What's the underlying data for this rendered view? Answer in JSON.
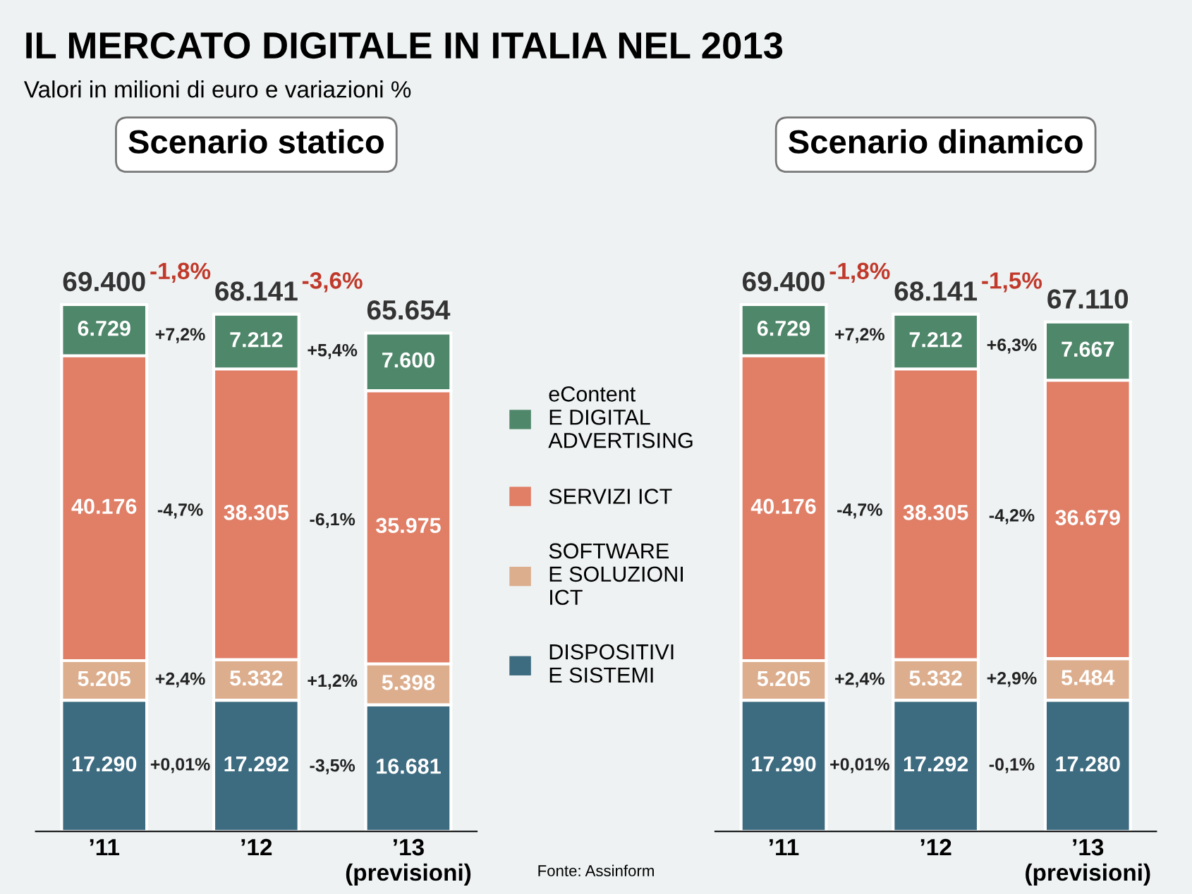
{
  "chart_data": [
    {
      "type": "bar",
      "stacked": true,
      "title": "Scenario statico",
      "categories": [
        "’11",
        "’12",
        "’13\n(previsioni)"
      ],
      "tick_labels": "x",
      "grid": false,
      "legend": "right",
      "series": [
        {
          "name": "DISPOSITIVI\nE SISTEMI",
          "color": "#3d6b80",
          "values": [
            17290,
            17292,
            16681
          ],
          "value_labels": [
            "17.290",
            "17.292",
            "16.681"
          ]
        },
        {
          "name": "SOFTWARE\nE SOLUZIONI\nICT",
          "color": "#dcae8e",
          "values": [
            5205,
            5332,
            5398
          ],
          "value_labels": [
            "5.205",
            "5.332",
            "5.398"
          ]
        },
        {
          "name": "SERVIZI ICT",
          "color": "#e07e66",
          "values": [
            40176,
            38305,
            35975
          ],
          "value_labels": [
            "40.176",
            "38.305",
            "35.975"
          ]
        },
        {
          "name": "eContent\nE DIGITAL\nADVERTISING",
          "color": "#4f876a",
          "values": [
            6729,
            7212,
            7600
          ],
          "value_labels": [
            "6.729",
            "7.212",
            "7.600"
          ]
        }
      ],
      "totals": [
        "69.400",
        "68.141",
        "65.654"
      ],
      "annotations": [
        "IL MERCATO DIGITALE IN ITALIA NEL 2013",
        "Valori in milioni di euro e variazioni %",
        "-1,8%",
        "-3,6%",
        "+0,01%",
        "-3,5%",
        "+2,4%",
        "+1,2%",
        "-4,7%",
        "-6,1%",
        "+7,2%",
        "+5,4%"
      ]
    },
    {
      "type": "bar",
      "stacked": true,
      "title": "Scenario dinamico",
      "categories": [
        "’11",
        "’12",
        "’13\n(previsioni)"
      ],
      "tick_labels": "x",
      "grid": false,
      "series": [
        {
          "color": "#3d6b80",
          "values": [
            17290,
            17292,
            17280
          ],
          "value_labels": [
            "17.290",
            "17.292",
            "17.280"
          ]
        },
        {
          "color": "#dcae8e",
          "values": [
            5205,
            5332,
            5484
          ],
          "value_labels": [
            "5.205",
            "5.332",
            "5.484"
          ]
        },
        {
          "color": "#e07e66",
          "values": [
            40176,
            38305,
            36679
          ],
          "value_labels": [
            "40.176",
            "38.305",
            "36.679"
          ]
        },
        {
          "color": "#4f876a",
          "values": [
            6729,
            7212,
            7667
          ],
          "value_labels": [
            "6.729",
            "7.212",
            "7.667"
          ]
        }
      ],
      "totals": [
        "69.400",
        "68.141",
        "67.110"
      ],
      "annotations": [
        "-1,8%",
        "-1,5%",
        "+0,01%",
        "-0,1%",
        "+2,4%",
        "+2,9%",
        "-4,7%",
        "-4,2%",
        "+7,2%",
        "+6,3%",
        "Fonte: Assinform"
      ]
    }
  ]
}
